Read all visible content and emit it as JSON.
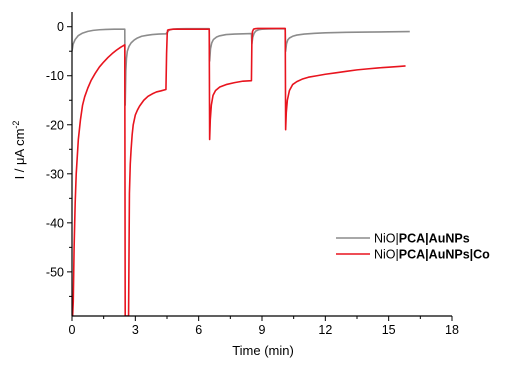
{
  "chart_data": {
    "type": "line",
    "title": "",
    "xlabel": "Time (min)",
    "ylabel": "I / μA cm⁻²",
    "ylabel_parts": {
      "main": "I / μA cm",
      "sup": "-2"
    },
    "xlim": [
      0,
      18
    ],
    "ylim": [
      -59,
      3
    ],
    "xticks": [
      0,
      3,
      6,
      9,
      12,
      15,
      18
    ],
    "yticks": [
      0,
      -10,
      -20,
      -30,
      -40,
      -50
    ],
    "xtick_labels": [
      "0",
      "3",
      "6",
      "9",
      "12",
      "15",
      "18"
    ],
    "ytick_labels": [
      "0",
      "-10",
      "-20",
      "-30",
      "-40",
      "-50"
    ],
    "grid": false,
    "legend_position": "bottom-right",
    "series": [
      {
        "name": "NiO|PCA|AuNPs",
        "name_parts": {
          "plain": "NiO|",
          "bold": "PCA|AuNPs"
        },
        "color": "#8c8c8c",
        "x": [
          0,
          0.05,
          0.15,
          0.3,
          0.5,
          0.75,
          1.0,
          1.3,
          1.6,
          2.0,
          2.5,
          2.52,
          2.55,
          2.58,
          2.62,
          2.7,
          2.8,
          2.95,
          3.1,
          3.3,
          3.55,
          3.8,
          4.1,
          4.45,
          4.52,
          4.6,
          4.75,
          5.0,
          5.4,
          5.8,
          6.2,
          6.5,
          6.52,
          6.56,
          6.62,
          6.7,
          6.85,
          7.0,
          7.3,
          7.7,
          8.1,
          8.5,
          8.52,
          8.56,
          8.62,
          8.7,
          8.85,
          9.0,
          9.3,
          9.7,
          10.1,
          10.12,
          10.16,
          10.22,
          10.3,
          10.45,
          10.65,
          11.0,
          11.5,
          12.0,
          13.0,
          14.0,
          15.0,
          16.0
        ],
        "y": [
          -5,
          -3.6,
          -2.6,
          -1.8,
          -1.3,
          -0.95,
          -0.75,
          -0.62,
          -0.55,
          -0.5,
          -0.5,
          -16,
          -9,
          -6.5,
          -5,
          -4,
          -3.3,
          -2.7,
          -2.3,
          -1.95,
          -1.75,
          -1.6,
          -1.5,
          -1.45,
          -1.1,
          -0.7,
          -0.5,
          -0.42,
          -0.4,
          -0.4,
          -0.4,
          -0.4,
          -7,
          -4.5,
          -3.3,
          -2.6,
          -2.1,
          -1.85,
          -1.6,
          -1.5,
          -1.45,
          -1.4,
          -3.5,
          -2.2,
          -1.4,
          -0.9,
          -0.6,
          -0.5,
          -0.45,
          -0.42,
          -0.4,
          -5,
          -3.5,
          -2.7,
          -2.3,
          -1.95,
          -1.7,
          -1.5,
          -1.35,
          -1.25,
          -1.15,
          -1.1,
          -1.05,
          -1.0
        ]
      },
      {
        "name": "NiO|PCA|AuNPs|Co",
        "name_parts": {
          "plain": "NiO|",
          "bold": "PCA|AuNPs|Co"
        },
        "color": "#e8141e",
        "x": [
          0,
          0.03,
          0.06,
          0.1,
          0.15,
          0.2,
          0.3,
          0.4,
          0.5,
          0.6,
          0.75,
          0.9,
          1.1,
          1.3,
          1.5,
          1.7,
          1.9,
          2.1,
          2.3,
          2.5,
          2.52,
          2.56,
          2.6,
          2.64,
          2.68,
          2.72,
          2.76,
          2.8,
          2.85,
          2.9,
          3.0,
          3.1,
          3.2,
          3.4,
          3.6,
          3.8,
          4.0,
          4.2,
          4.45,
          4.48,
          4.51,
          4.53,
          4.6,
          4.8,
          5.0,
          5.3,
          5.7,
          6.1,
          6.5,
          6.52,
          6.55,
          6.6,
          6.68,
          6.8,
          7.0,
          7.3,
          7.7,
          8.1,
          8.5,
          8.52,
          8.55,
          8.6,
          8.68,
          8.8,
          9.0,
          9.3,
          9.7,
          10.1,
          10.12,
          10.15,
          10.2,
          10.3,
          10.45,
          10.65,
          10.9,
          11.2,
          11.6,
          12.0,
          12.5,
          13.0,
          13.5,
          14.0,
          14.5,
          15.0,
          15.5,
          15.8
        ],
        "y": [
          -59,
          -59,
          -56,
          -45,
          -36,
          -30,
          -23,
          -19,
          -16,
          -14.3,
          -12.5,
          -11,
          -9.5,
          -8.2,
          -7.2,
          -6.3,
          -5.5,
          -4.8,
          -4.2,
          -3.7,
          -59,
          -59,
          -59,
          -59,
          -59,
          -34,
          -28,
          -25,
          -22,
          -20,
          -18,
          -17,
          -16.2,
          -15,
          -14.2,
          -13.7,
          -13.3,
          -13.1,
          -12.8,
          -5.5,
          -1.5,
          -0.7,
          -0.6,
          -0.5,
          -0.5,
          -0.5,
          -0.5,
          -0.5,
          -0.5,
          -23,
          -19,
          -16,
          -14,
          -13,
          -12.3,
          -11.8,
          -11.4,
          -11.1,
          -11.0,
          -3,
          -1,
          -0.5,
          -0.4,
          -0.35,
          -0.35,
          -0.35,
          -0.35,
          -0.35,
          -21,
          -17.5,
          -15,
          -13,
          -11.8,
          -11.2,
          -10.7,
          -10.3,
          -10.0,
          -9.7,
          -9.4,
          -9.1,
          -8.8,
          -8.6,
          -8.4,
          -8.25,
          -8.1,
          -8.0
        ]
      }
    ]
  }
}
